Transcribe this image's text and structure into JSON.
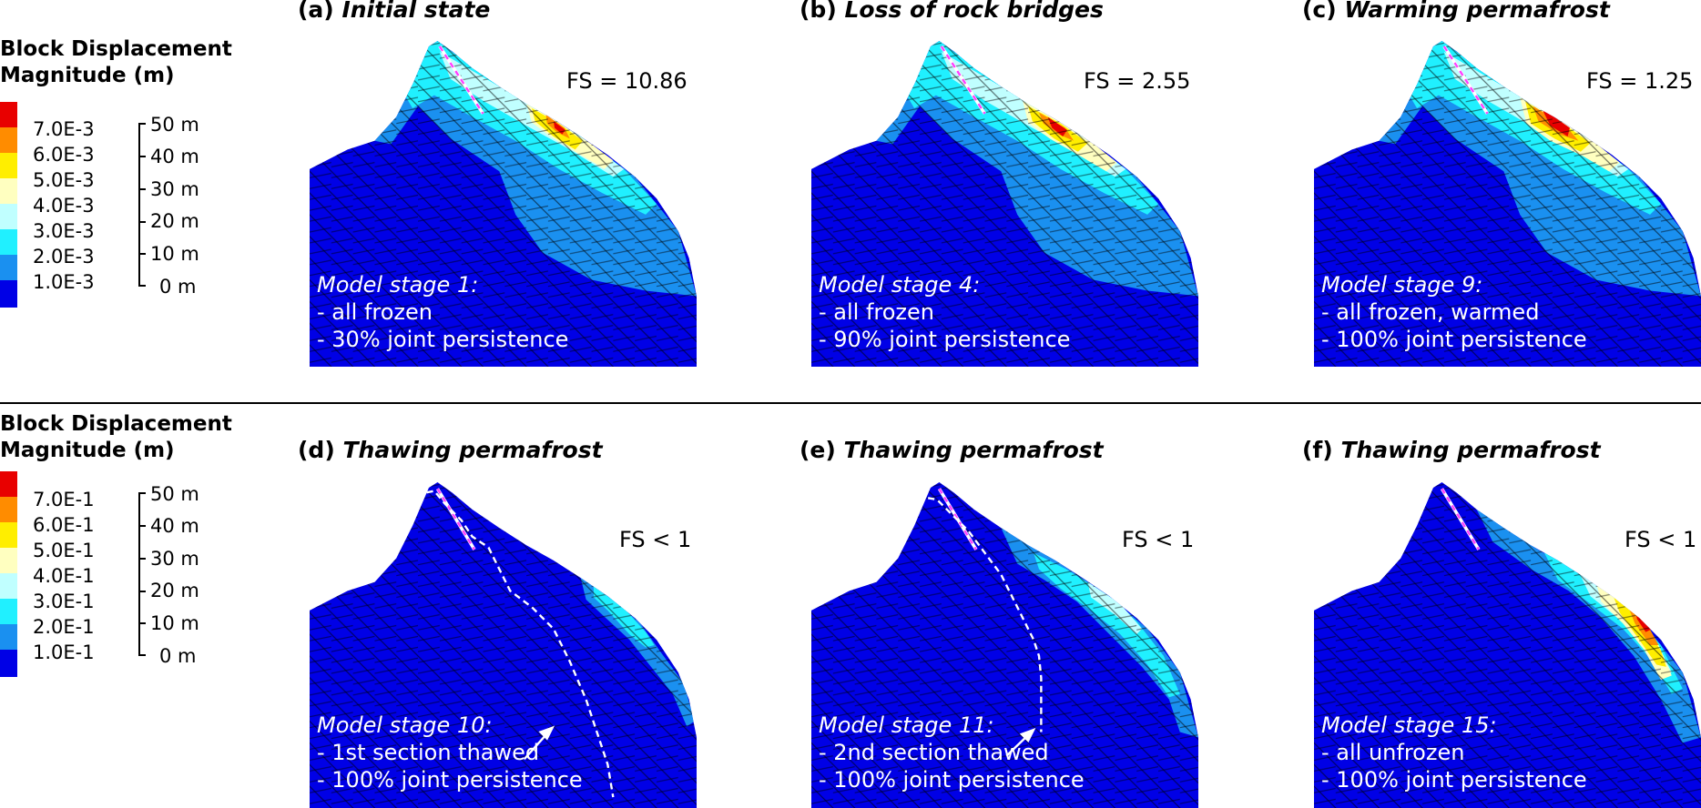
{
  "legends": [
    {
      "title_line1": "Block Displacement",
      "title_line2": "Magnitude (m)",
      "colorbar": [
        "7.0E-3",
        "6.0E-3",
        "5.0E-3",
        "4.0E-3",
        "3.0E-3",
        "2.0E-3",
        "1.0E-3"
      ],
      "scale": [
        "50 m",
        "40 m",
        "30 m",
        "20 m",
        "10 m",
        "0 m"
      ]
    },
    {
      "title_line1": "Block Displacement",
      "title_line2": "Magnitude (m)",
      "colorbar": [
        "7.0E-1",
        "6.0E-1",
        "5.0E-1",
        "4.0E-1",
        "3.0E-1",
        "2.0E-1",
        "1.0E-1"
      ],
      "scale": [
        "50 m",
        "40 m",
        "30 m",
        "20 m",
        "10 m",
        "0 m"
      ]
    }
  ],
  "colorbar_colors": [
    "#e80000",
    "#ff8c00",
    "#ffee00",
    "#ffffc0",
    "#c0ffff",
    "#20f0ff",
    "#1a90f0",
    "#0000e6"
  ],
  "panels": [
    {
      "letter": "(a)",
      "title": "Initial state",
      "fs": "FS = 10.86",
      "stage": "Model stage 1:",
      "line1": "- all frozen",
      "line2": "- 30% joint persistence"
    },
    {
      "letter": "(b)",
      "title": "Loss of rock bridges",
      "fs": "FS = 2.55",
      "stage": "Model stage 4:",
      "line1": "- all frozen",
      "line2": "- 90% joint persistence"
    },
    {
      "letter": "(c)",
      "title": "Warming permafrost",
      "fs": "FS = 1.25",
      "stage": "Model stage 9:",
      "line1": "- all frozen, warmed",
      "line2": "- 100% joint persistence"
    },
    {
      "letter": "(d)",
      "title": "Thawing permafrost",
      "fs": "FS < 1",
      "stage": "Model stage 10:",
      "line1": "- 1st section thawed",
      "line2": "- 100% joint persistence"
    },
    {
      "letter": "(e)",
      "title": "Thawing permafrost",
      "fs": "FS < 1",
      "stage": "Model stage 11:",
      "line1": "- 2nd section thawed",
      "line2": "- 100% joint persistence"
    },
    {
      "letter": "(f)",
      "title": "Thawing permafrost",
      "fs": "FS < 1",
      "stage": "Model stage 15:",
      "line1": "- all unfrozen",
      "line2": "- 100% joint persistence"
    }
  ]
}
